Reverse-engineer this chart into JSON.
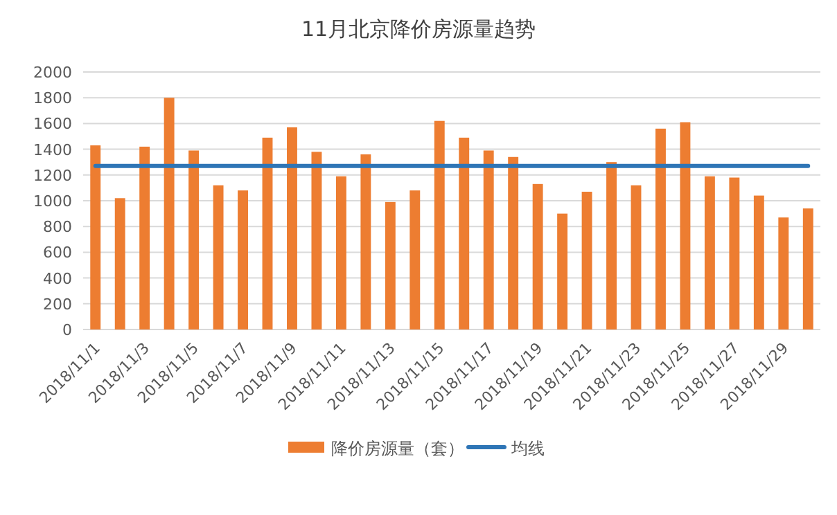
{
  "chart_data": {
    "type": "bar",
    "title": "11月北京降价房源量趋势",
    "categories": [
      "2018/11/1",
      null,
      "2018/11/3",
      null,
      "2018/11/5",
      null,
      "2018/11/7",
      null,
      "2018/11/9",
      null,
      "2018/11/11",
      null,
      "2018/11/13",
      null,
      "2018/11/15",
      null,
      "2018/11/17",
      null,
      "2018/11/19",
      null,
      "2018/11/21",
      null,
      "2018/11/23",
      null,
      "2018/11/25",
      null,
      "2018/11/27",
      null,
      "2018/11/29",
      null
    ],
    "series": [
      {
        "name": "降价房源量（套）",
        "color": "#ed7d31",
        "values": [
          1430,
          1020,
          1420,
          1800,
          1390,
          1120,
          1080,
          1490,
          1570,
          1380,
          1190,
          1360,
          990,
          1080,
          1620,
          1490,
          1390,
          1340,
          1130,
          900,
          1070,
          1300,
          1120,
          1560,
          1610,
          1190,
          1180,
          1040,
          870,
          940
        ]
      },
      {
        "name": "均线",
        "type": "line",
        "color": "#2e75b6",
        "values": [
          1270,
          1270,
          1270,
          1270,
          1270,
          1270,
          1270,
          1270,
          1270,
          1270,
          1270,
          1270,
          1270,
          1270,
          1270,
          1270,
          1270,
          1270,
          1270,
          1270,
          1270,
          1270,
          1270,
          1270,
          1270,
          1270,
          1270,
          1270,
          1270,
          1270
        ]
      }
    ],
    "ylim": [
      0,
      2000
    ],
    "yticks": [
      0,
      200,
      400,
      600,
      800,
      1000,
      1200,
      1400,
      1600,
      1800,
      2000
    ],
    "grid": "y",
    "legend": "bottom"
  }
}
